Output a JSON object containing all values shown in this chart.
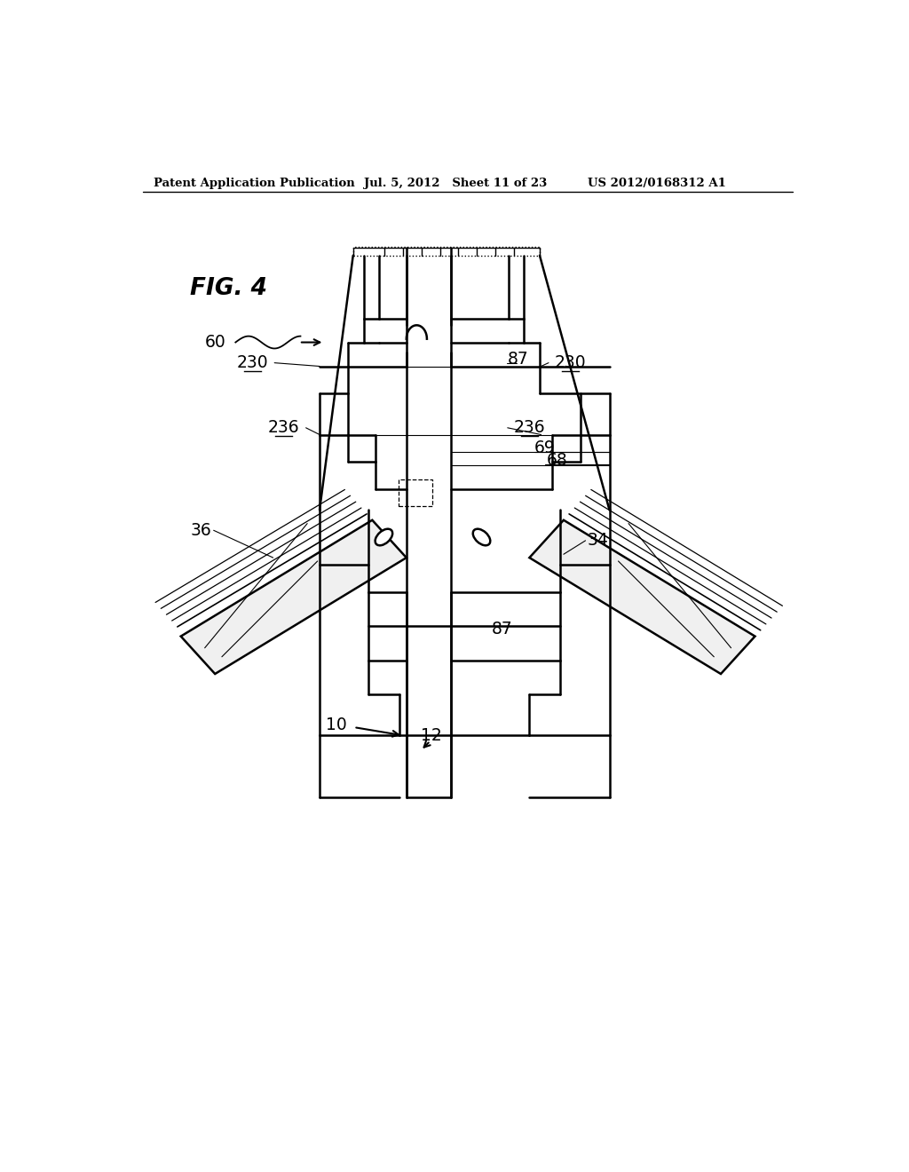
{
  "bg_color": "#ffffff",
  "line_color": "#000000",
  "header_left": "Patent Application Publication",
  "header_mid": "Jul. 5, 2012   Sheet 11 of 23",
  "header_right": "US 2012/0168312 A1"
}
